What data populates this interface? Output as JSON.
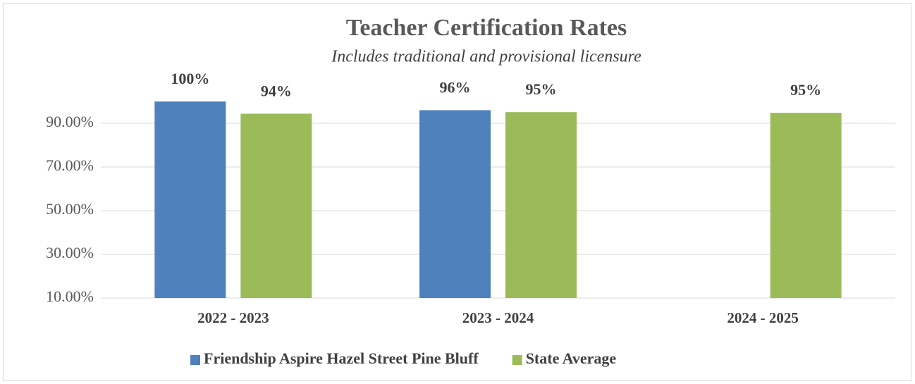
{
  "chart_data": {
    "type": "bar",
    "title": "Teacher Certification Rates",
    "subtitle": "Includes traditional and provisional licensure",
    "categories": [
      "2022 - 2023",
      "2023 - 2024",
      "2024 - 2025"
    ],
    "series": [
      {
        "name": "Friendship Aspire Hazel Street Pine Bluff",
        "color": "#4f81bd",
        "values": [
          100,
          96,
          null
        ],
        "value_labels": [
          "100%",
          "96%",
          null
        ]
      },
      {
        "name": "State Average",
        "color": "#9bbb59",
        "values": [
          94.4,
          95.1,
          94.8
        ],
        "value_labels": [
          "94%",
          "95%",
          "95%"
        ]
      }
    ],
    "ylim": [
      10,
      110
    ],
    "yticks": [
      {
        "value": 10,
        "label": "10.00%"
      },
      {
        "value": 30,
        "label": "30.00%"
      },
      {
        "value": 50,
        "label": "50.00%"
      },
      {
        "value": 70,
        "label": "70.00%"
      },
      {
        "value": 90,
        "label": "90.00%"
      }
    ],
    "grid": true,
    "legend": "bottom"
  }
}
